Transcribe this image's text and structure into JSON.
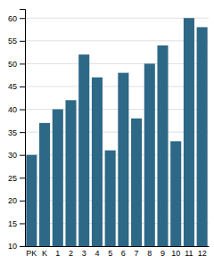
{
  "chart_data": {
    "type": "bar",
    "categories": [
      "PK",
      "K",
      "1",
      "2",
      "3",
      "4",
      "5",
      "6",
      "7",
      "8",
      "9",
      "10",
      "11",
      "12"
    ],
    "values": [
      30,
      37,
      40,
      42,
      52,
      47,
      31,
      48,
      38,
      50,
      54,
      33,
      60,
      58
    ],
    "color": "#2e6887",
    "ylim": [
      10,
      62
    ],
    "yticks": [
      10,
      15,
      20,
      25,
      30,
      35,
      40,
      45,
      50,
      55,
      60
    ],
    "grid": true
  }
}
